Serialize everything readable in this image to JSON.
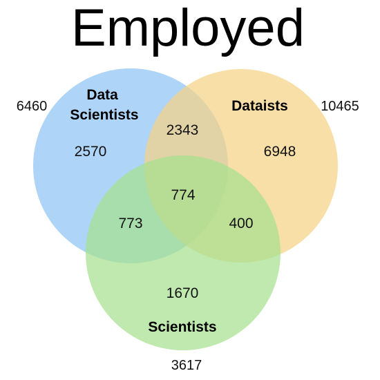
{
  "title": "Employed",
  "colors": {
    "data_scientists": "#8fc3f5",
    "dataists": "#f5d287",
    "scientists": "#a6e08f"
  },
  "sets": {
    "data_scientists": {
      "label_line1": "Data",
      "label_line2": "Scientists",
      "total": "6460"
    },
    "dataists": {
      "label": "Dataists",
      "total": "10465"
    },
    "scientists": {
      "label": "Scientists",
      "total": "3617"
    }
  },
  "regions": {
    "data_scientists_only": "2570",
    "dataists_only": "6948",
    "scientists_only": "1670",
    "data_scientists_dataists": "2343",
    "data_scientists_scientists": "773",
    "dataists_scientists": "400",
    "all_three": "774"
  }
}
